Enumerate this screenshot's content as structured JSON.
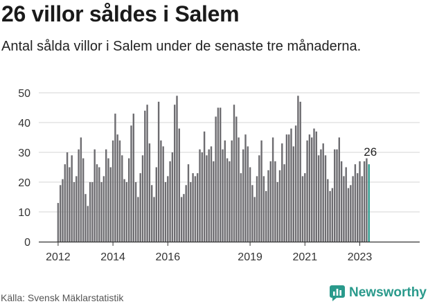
{
  "title": "26 villor såldes i Salem",
  "subtitle": "Antal sålda villor i Salem under de senaste tre månaderna.",
  "source": "Källa: Svensk Mäklarstatistik",
  "brand": {
    "name": "Newsworthy",
    "color": "#2a9a8c",
    "icon": "newsworthy-logo-icon"
  },
  "colors": {
    "bar": "#6d6c70",
    "highlight": "#2a9a8c",
    "grid": "#d4d4d4",
    "axis": "#333333"
  },
  "chart_data": {
    "type": "bar",
    "title": "26 villor såldes i Salem",
    "xlabel": "",
    "ylabel": "",
    "ylim": [
      0,
      50
    ],
    "yticks": [
      0,
      10,
      20,
      30,
      40,
      50
    ],
    "grid": true,
    "start": "2012-01",
    "xticks": [
      {
        "label": "2012",
        "index": 0
      },
      {
        "label": "2014",
        "index": 24
      },
      {
        "label": "2016",
        "index": 48
      },
      {
        "label": "2019",
        "index": 84
      },
      {
        "label": "2021",
        "index": 108
      },
      {
        "label": "2023",
        "index": 132
      }
    ],
    "values": [
      13,
      19,
      21,
      26,
      30,
      25,
      29,
      20,
      22,
      31,
      35,
      28,
      16,
      12,
      20,
      20,
      31,
      26,
      25,
      20,
      22,
      31,
      28,
      25,
      34,
      43,
      36,
      34,
      29,
      21,
      20,
      28,
      39,
      43,
      20,
      15,
      23,
      29,
      44,
      46,
      33,
      19,
      15,
      25,
      47,
      34,
      32,
      20,
      22,
      27,
      30,
      46,
      49,
      38,
      15,
      16,
      19,
      26,
      20,
      23,
      22,
      23,
      31,
      30,
      37,
      29,
      31,
      32,
      27,
      42,
      45,
      45,
      31,
      34,
      28,
      27,
      34,
      46,
      42,
      35,
      23,
      31,
      36,
      32,
      25,
      19,
      15,
      22,
      29,
      34,
      22,
      17,
      24,
      27,
      35,
      27,
      20,
      24,
      33,
      26,
      36,
      36,
      38,
      32,
      39,
      49,
      47,
      22,
      23,
      34,
      36,
      35,
      38,
      37,
      29,
      31,
      33,
      29,
      21,
      17,
      18,
      31,
      31,
      35,
      27,
      22,
      25,
      18,
      19,
      22,
      26,
      23,
      27,
      22,
      27,
      28,
      26
    ],
    "highlight_last": true,
    "annotation": {
      "label": "26",
      "index": 136
    }
  }
}
